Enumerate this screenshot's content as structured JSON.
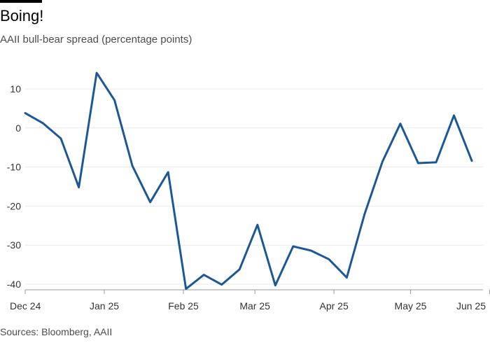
{
  "header": {
    "title": "Boing!",
    "subtitle": "AAII bull-bear spread (percentage points)"
  },
  "footer": {
    "source": "Sources: Bloomberg, AAII"
  },
  "colors": {
    "line": "#1d5896",
    "grid": "#e8e8e8",
    "axis": "#999999"
  },
  "chart_data": {
    "type": "line",
    "title": "Boing!",
    "subtitle": "AAII bull-bear spread (percentage points)",
    "xlabel": "",
    "ylabel": "",
    "ylim": [
      -42,
      14
    ],
    "grid": true,
    "x_ticks": [
      {
        "label": "Dec 24",
        "date": "2024-12-01"
      },
      {
        "label": "Jan 25",
        "date": "2025-01-01"
      },
      {
        "label": "Feb 25",
        "date": "2025-02-01"
      },
      {
        "label": "Mar 25",
        "date": "2025-03-01"
      },
      {
        "label": "Apr 25",
        "date": "2025-04-01"
      },
      {
        "label": "May 25",
        "date": "2025-05-01"
      },
      {
        "label": "Jun 25",
        "date": "2025-06-01"
      }
    ],
    "y_ticks": [
      10,
      0,
      -10,
      -20,
      -30,
      -40
    ],
    "series": [
      {
        "x": [
          "2024-12-01",
          "2024-12-08",
          "2024-12-15",
          "2024-12-22",
          "2024-12-29",
          "2025-01-05",
          "2025-01-12",
          "2025-01-19",
          "2025-01-26",
          "2025-02-02",
          "2025-02-09",
          "2025-02-16",
          "2025-02-23",
          "2025-03-02",
          "2025-03-09",
          "2025-03-16",
          "2025-03-23",
          "2025-03-30",
          "2025-04-06",
          "2025-04-13",
          "2025-04-20",
          "2025-04-27",
          "2025-05-04",
          "2025-05-11",
          "2025-05-18",
          "2025-05-25",
          "2025-06-01"
        ],
        "values": [
          3.8,
          1.2,
          -2.7,
          -15.2,
          14.1,
          7.1,
          -9.7,
          -19.0,
          -11.3,
          -41.2,
          -37.6,
          -40.1,
          -36.2,
          -24.8,
          -40.3,
          -30.3,
          -31.4,
          -33.6,
          -38.3,
          -22.0,
          -8.6,
          1.1,
          -9.0,
          -8.8,
          3.2,
          -8.4,
          null
        ]
      }
    ]
  }
}
